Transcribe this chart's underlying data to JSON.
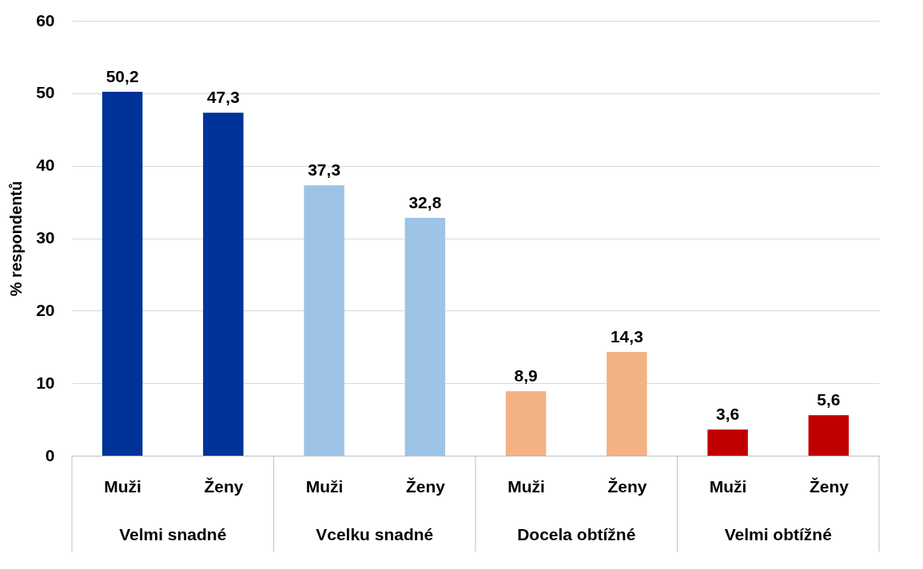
{
  "chart_data": {
    "type": "bar",
    "ylabel": "% respondentů",
    "categories": [
      "Muži",
      "Ženy",
      "Muži",
      "Ženy",
      "Muži",
      "Ženy",
      "Muži",
      "Ženy"
    ],
    "values": [
      50.2,
      47.3,
      37.3,
      32.8,
      8.9,
      14.3,
      3.6,
      5.6
    ],
    "value_labels": [
      "50,2",
      "47,3",
      "37,3",
      "32,8",
      "8,9",
      "14,3",
      "3,6",
      "5,6"
    ],
    "colors": [
      "#003399",
      "#003399",
      "#9dc3e6",
      "#9dc3e6",
      "#f4b183",
      "#f4b183",
      "#c00000",
      "#c00000"
    ],
    "annotations": [
      "Velmi snadné",
      "Vcelku snadné",
      "Docela obtížné",
      "Velmi obtížné"
    ],
    "ylim": [
      0,
      60
    ],
    "yticks": [
      0,
      10,
      20,
      30,
      40,
      50,
      60
    ],
    "grid": "y"
  }
}
